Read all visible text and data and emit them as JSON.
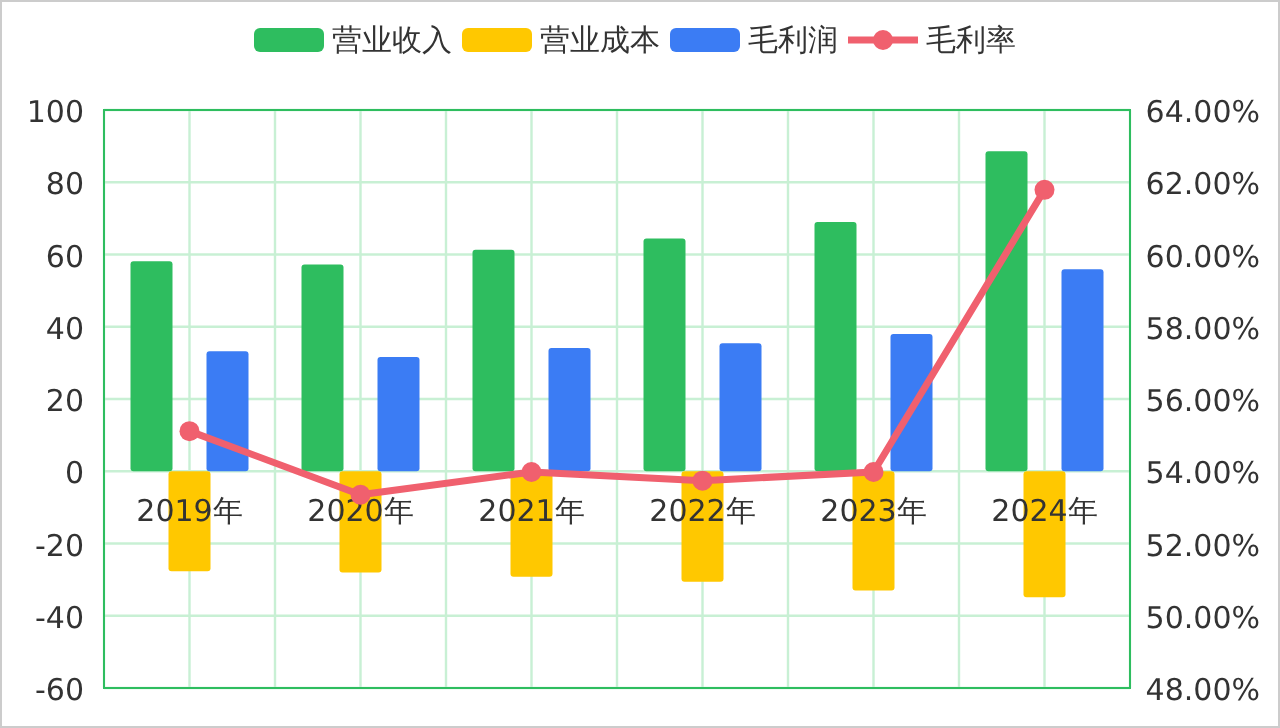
{
  "chart_data": {
    "type": "bar",
    "categories": [
      "2019年",
      "2020年",
      "2021年",
      "2022年",
      "2023年",
      "2024年"
    ],
    "series": [
      {
        "name": "营业收入",
        "color": "#2ebd5f",
        "values": [
          58.1,
          57.2,
          61.3,
          64.4,
          69.0,
          88.6
        ]
      },
      {
        "name": "营业成本",
        "color": "#ffc800",
        "values": [
          -27.7,
          -28.0,
          -29.2,
          -30.6,
          -33.0,
          -34.9
        ]
      },
      {
        "name": "毛利润",
        "color": "#3b7cf4",
        "values": [
          33.2,
          31.6,
          34.1,
          35.4,
          38.0,
          55.9
        ]
      },
      {
        "name": "毛利率",
        "color": "#f0606e",
        "type": "line",
        "axis": "y2",
        "marker": "circle",
        "values": [
          55.11,
          53.35,
          53.98,
          53.74,
          53.98,
          61.79
        ]
      }
    ],
    "ylim": [
      -60,
      100
    ],
    "yticks": [
      -60,
      -40,
      -20,
      0,
      20,
      40,
      60,
      80,
      100
    ],
    "y2lim": [
      48,
      64
    ],
    "y2ticks": [
      {
        "value": 48,
        "label": "48.00%"
      },
      {
        "value": 50,
        "label": "50.00%"
      },
      {
        "value": 52,
        "label": "52.00%"
      },
      {
        "value": 54,
        "label": "54.00%"
      },
      {
        "value": 56,
        "label": "56.00%"
      },
      {
        "value": 58,
        "label": "58.00%"
      },
      {
        "value": 60,
        "label": "60.00%"
      },
      {
        "value": 62,
        "label": "62.00%"
      },
      {
        "value": 64,
        "label": "64.00%"
      }
    ],
    "grid": true,
    "legend": "top"
  }
}
